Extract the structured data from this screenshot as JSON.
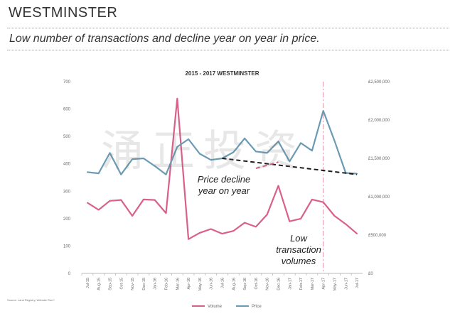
{
  "header": {
    "title": "WESTMINSTER",
    "subtitle": "Low number of transactions and decline year on year in price."
  },
  "source_note": "Source: Land Registry, Website Run?",
  "watermark": "涌正投资",
  "annotations": {
    "price_line1": "Price decline",
    "price_line2": "year on year",
    "volume_line1": "Low",
    "volume_line2": "transaction",
    "volume_line3": "volumes"
  },
  "chart_data": {
    "type": "line",
    "title": "2015 - 2017 WESTMINSTER",
    "categories": [
      "Jul-15",
      "Aug-15",
      "Sep-15",
      "Oct-15",
      "Nov-15",
      "Dec-15",
      "Jan-16",
      "Feb-16",
      "Mar-16",
      "Apr-16",
      "May-16",
      "Jun-16",
      "Jul-16",
      "Aug-16",
      "Sep-16",
      "Oct-16",
      "Nov-16",
      "Dec-16",
      "Jan-17",
      "Feb-17",
      "Mar-17",
      "Apr-17",
      "May-17",
      "Jun-17",
      "Jul-17"
    ],
    "y_left": {
      "min": 0,
      "max": 700,
      "ticks": [
        "0",
        "100",
        "200",
        "300",
        "400",
        "500",
        "600",
        "700"
      ]
    },
    "y_right": {
      "min": 0,
      "max": 2500000,
      "ticks": [
        "£0",
        "£500,000",
        "£1,000,000",
        "£1,500,000",
        "£2,000,000",
        "£2,500,000"
      ]
    },
    "series": [
      {
        "name": "Volume",
        "axis": "left",
        "color": "#d9608a",
        "values": [
          258,
          232,
          265,
          268,
          210,
          270,
          268,
          220,
          638,
          125,
          148,
          162,
          145,
          155,
          185,
          170,
          215,
          320,
          190,
          200,
          270,
          260,
          210,
          180,
          145
        ]
      },
      {
        "name": "Price",
        "axis": "right",
        "color": "#6b9bb3",
        "values": [
          1320000,
          1305000,
          1570000,
          1290000,
          1490000,
          1500000,
          1400000,
          1290000,
          1650000,
          1750000,
          1560000,
          1480000,
          1500000,
          1580000,
          1760000,
          1590000,
          1570000,
          1720000,
          1460000,
          1700000,
          1600000,
          2120000,
          1730000,
          1310000,
          1300000
        ]
      }
    ],
    "trendlines": [
      {
        "series": "Price",
        "style": "dashed",
        "color": "#1a1a1a",
        "from": {
          "x": "Jul-16",
          "y": 1500000
        },
        "to": {
          "x": "Jul-17",
          "y": 1290000
        }
      },
      {
        "series": "Volume",
        "style": "dashed",
        "color": "#d9608a",
        "from": {
          "x": "Oct-16",
          "y": 1370000
        },
        "to": {
          "x": "Dec-16",
          "y": 1450000
        }
      }
    ],
    "reference_line": {
      "x": "Apr-17",
      "style": "dash-dot",
      "color": "#e8a0b4"
    },
    "legend": {
      "position": "bottom",
      "items": [
        "Volume",
        "Price"
      ]
    },
    "grid": false
  }
}
